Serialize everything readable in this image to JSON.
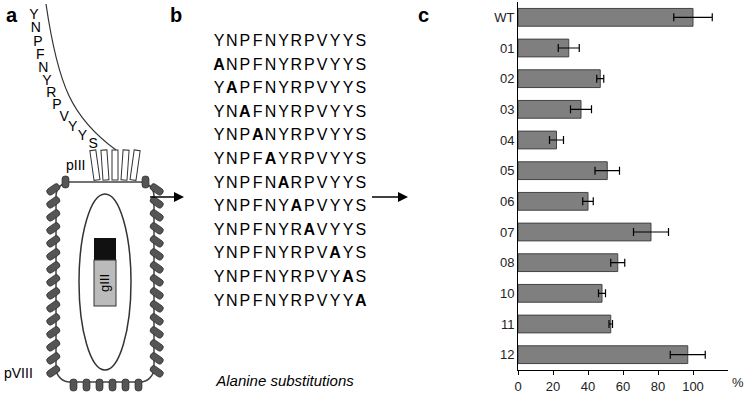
{
  "diagram": {
    "panel_label": "a",
    "peptide": "YNPFNYRPVYYS",
    "minor_coat": "pIII",
    "major_coat": "pVIII",
    "gene": "gIII"
  },
  "sequences": {
    "panel_label": "b",
    "rows": [
      "YNPFNYRPVYYS",
      "ANPFNYRPVYYS",
      "YAPFNYRPVYYS",
      "YNAFNYRPVYYS",
      "YNPANYRPVYYS",
      "YNPFAYRPVYYS",
      "YNPFNARPVYYS",
      "YNPFNYAPVYYS",
      "YNPFNYRAVYYS",
      "YNPFNYRPVAYS",
      "YNPFNYRPVYAS",
      "YNPFNYRPVYYA"
    ],
    "caption": "Alanine substitutions"
  },
  "chart_data": {
    "type": "bar",
    "title": "c",
    "orientation": "horizontal",
    "categories": [
      "WT",
      "01",
      "02",
      "03",
      "04",
      "05",
      "06",
      "07",
      "08",
      "10",
      "11",
      "12"
    ],
    "values": [
      100,
      29,
      47,
      36,
      22,
      51,
      40,
      76,
      57,
      48,
      53,
      97
    ],
    "errors": [
      11,
      6,
      2,
      6,
      4,
      7,
      3,
      10,
      4,
      2,
      1,
      10
    ],
    "color": "#7f7f7f",
    "xlabel": "%",
    "xlim": [
      0,
      120
    ],
    "xticks": [
      0,
      20,
      40,
      60,
      80,
      100
    ],
    "grid": false
  }
}
